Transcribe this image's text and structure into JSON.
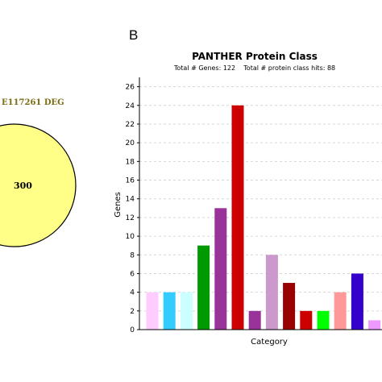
{
  "panel_a": {
    "label": "E117261 DEG",
    "count": "300",
    "circle_color": "#ffff88"
  },
  "panel_b": {
    "letter": "B"
  },
  "chart_data": {
    "type": "bar",
    "title": "PANTHER Protein Class",
    "subtitle": "Total # Genes: 122    Total # protein class hits: 88",
    "xlabel": "Category",
    "ylabel": "Genes",
    "ylim": [
      0,
      27
    ],
    "yticks": [
      0,
      2,
      4,
      6,
      8,
      10,
      12,
      14,
      16,
      18,
      20,
      22,
      24,
      26
    ],
    "grid": true,
    "values": [
      4,
      4,
      4,
      9,
      13,
      24,
      2,
      8,
      5,
      2,
      2,
      4,
      6,
      1
    ],
    "colors": [
      "#ffccff",
      "#33ccff",
      "#ccffff",
      "#009900",
      "#993399",
      "#cc0000",
      "#993399",
      "#cc99cc",
      "#990000",
      "#cc0000",
      "#00ff00",
      "#ff9999",
      "#3300cc",
      "#ee99ff"
    ]
  }
}
